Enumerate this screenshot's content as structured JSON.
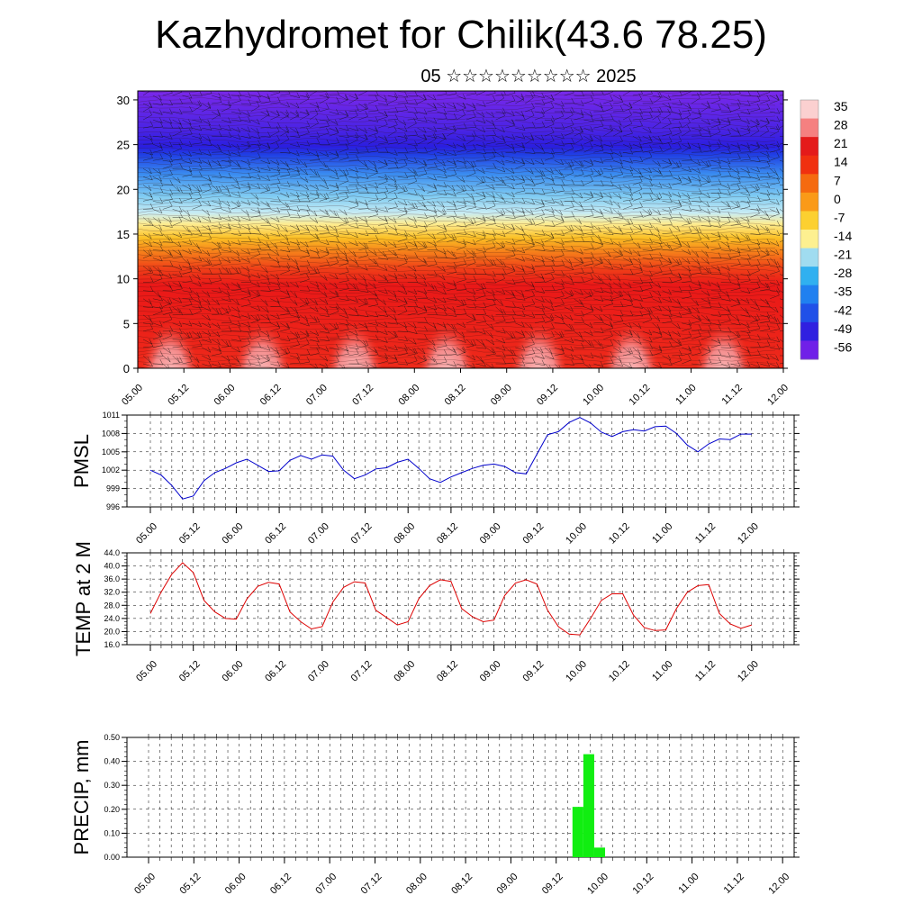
{
  "header": {
    "title": "Kazhydromet for Chilik(43.6 78.25)",
    "subtitle": "05 ☆☆☆☆☆☆☆☆☆ 2025"
  },
  "chart_data": [
    {
      "type": "heatmap",
      "title": "",
      "xlabel": "",
      "ylabel": "",
      "x_ticks": [
        "05.00",
        "05.12",
        "06.00",
        "06.12",
        "07.00",
        "07.12",
        "08.00",
        "08.12",
        "09.00",
        "09.12",
        "10.00",
        "10.12",
        "11.00",
        "11.12",
        "12.00"
      ],
      "y_ticks": [
        0,
        5,
        10,
        15,
        20,
        25,
        30
      ],
      "ylim": [
        0,
        31
      ],
      "colorbar_levels": [
        35,
        28,
        21,
        14,
        7,
        0,
        -7,
        -14,
        -21,
        -28,
        -35,
        -42,
        -49,
        -56
      ],
      "colorbar_colors": [
        "#fbd0d0",
        "#f58080",
        "#e41a1a",
        "#f03010",
        "#f56a10",
        "#fa9a18",
        "#fcd030",
        "#fdf090",
        "#a0dcf0",
        "#30b0f0",
        "#2080f0",
        "#2050e8",
        "#3020e0",
        "#7020e8"
      ]
    },
    {
      "type": "line",
      "ylabel": "PMSL",
      "ylim": [
        996,
        1011
      ],
      "y_ticks": [
        996,
        999,
        1002,
        1005,
        1008,
        1011
      ],
      "x_ticks": [
        "05.00",
        "05.12",
        "06.00",
        "06.12",
        "07.00",
        "07.12",
        "08.00",
        "08.12",
        "09.00",
        "09.12",
        "10.00",
        "10.12",
        "11.00",
        "11.12",
        "12.00"
      ],
      "color": "#0000cc",
      "x": [
        0,
        1,
        2,
        3,
        4,
        5,
        6,
        7,
        8,
        9,
        10,
        11,
        12,
        13,
        14,
        15,
        16,
        17,
        18,
        19,
        20,
        21,
        22,
        23,
        24,
        25,
        26,
        27,
        28,
        29,
        30,
        31,
        32,
        33,
        34,
        35,
        36,
        37,
        38,
        39,
        40,
        41,
        42,
        43,
        44,
        45,
        46,
        47,
        48,
        49,
        50,
        51,
        52,
        53,
        54,
        55,
        56
      ],
      "values": [
        1002.0,
        1001.2,
        999.5,
        997.3,
        997.8,
        1000.3,
        1001.6,
        1002.3,
        1003.2,
        1003.8,
        1002.8,
        1001.8,
        1001.9,
        1003.6,
        1004.4,
        1003.8,
        1004.5,
        1004.3,
        1002.0,
        1000.6,
        1001.2,
        1002.2,
        1002.4,
        1003.3,
        1003.8,
        1002.3,
        1000.6,
        1000.0,
        1000.9,
        1001.6,
        1002.3,
        1002.8,
        1003.0,
        1002.6,
        1001.6,
        1001.4,
        1004.6,
        1007.8,
        1008.3,
        1009.8,
        1010.6,
        1009.7,
        1008.2,
        1007.5,
        1008.3,
        1008.6,
        1008.4,
        1009.1,
        1009.2,
        1008.0,
        1006.1,
        1005.0,
        1006.3,
        1007.1,
        1007.0,
        1007.9,
        1007.9
      ]
    },
    {
      "type": "line",
      "ylabel": "TEMP at 2 M",
      "ylim": [
        16.0,
        44.0
      ],
      "y_ticks": [
        "16.0",
        "20.0",
        "24.0",
        "28.0",
        "32.0",
        "36.0",
        "40.0",
        "44.0"
      ],
      "x_ticks": [
        "05.00",
        "05.12",
        "06.00",
        "06.12",
        "07.00",
        "07.12",
        "08.00",
        "08.12",
        "09.00",
        "09.12",
        "10.00",
        "10.12",
        "11.00",
        "11.12",
        "12.00"
      ],
      "color": "#dd0000",
      "x": [
        0,
        1,
        2,
        3,
        4,
        5,
        6,
        7,
        8,
        9,
        10,
        11,
        12,
        13,
        14,
        15,
        16,
        17,
        18,
        19,
        20,
        21,
        22,
        23,
        24,
        25,
        26,
        27,
        28,
        29,
        30,
        31,
        32,
        33,
        34,
        35,
        36,
        37,
        38,
        39,
        40,
        41,
        42,
        43,
        44,
        45,
        46,
        47,
        48,
        49,
        50,
        51,
        52,
        53,
        54,
        55,
        56
      ],
      "values": [
        25.5,
        32.0,
        37.5,
        41.0,
        38.0,
        29.5,
        26.0,
        24.0,
        23.8,
        30.0,
        33.8,
        35.0,
        34.5,
        26.0,
        23.0,
        20.8,
        21.5,
        29.0,
        33.5,
        35.2,
        34.8,
        26.5,
        24.3,
        22.0,
        23.0,
        30.0,
        34.0,
        35.8,
        35.3,
        27.0,
        24.5,
        23.0,
        23.5,
        31.0,
        34.8,
        35.8,
        34.5,
        26.5,
        21.5,
        19.2,
        19.0,
        24.0,
        29.5,
        31.5,
        31.5,
        25.0,
        21.2,
        20.3,
        20.5,
        27.0,
        32.0,
        34.0,
        34.3,
        25.5,
        22.3,
        21.0,
        22.0
      ]
    },
    {
      "type": "bar",
      "ylabel": "PRECIP, mm",
      "ylim": [
        0.0,
        0.5
      ],
      "y_ticks": [
        "0.00",
        "0.10",
        "0.20",
        "0.30",
        "0.40",
        "0.50"
      ],
      "x_ticks": [
        "05.00",
        "05.12",
        "06.00",
        "06.12",
        "07.00",
        "07.12",
        "08.00",
        "08.12",
        "09.00",
        "09.12",
        "10.00",
        "10.12",
        "11.00",
        "11.12",
        "12.00"
      ],
      "color": "#11ee11",
      "bars": [
        {
          "x_start": 9.36,
          "x_end": 9.6,
          "value": 0.21
        },
        {
          "x_start": 9.6,
          "x_end": 9.84,
          "value": 0.43
        },
        {
          "x_start": 9.84,
          "x_end": 10.08,
          "value": 0.04
        }
      ]
    }
  ]
}
